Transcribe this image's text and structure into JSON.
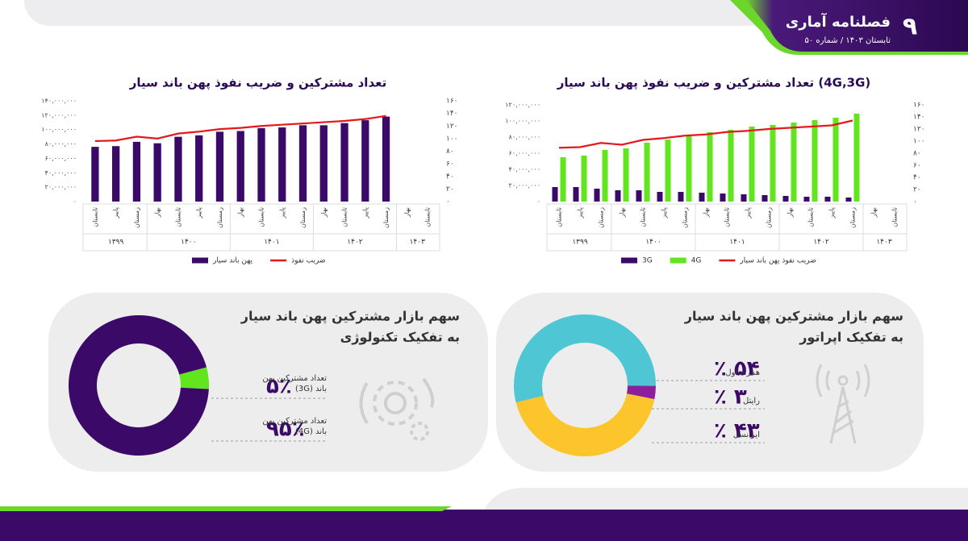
{
  "header": {
    "page": "۹",
    "title": "فصلنامه آماری",
    "subtitle": "تابستان ۱۴۰۳ / شماره ۵۰"
  },
  "chart_data": [
    {
      "type": "bar",
      "title": "تعداد مشترکین و ضریب نفوذ پهن باند سیار (4G,3G)",
      "category_groups": [
        {
          "label": "۱۳۹۹",
          "categories": [
            "تابستان",
            "پاییز",
            "زمستان"
          ]
        },
        {
          "label": "۱۴۰۰",
          "categories": [
            "بهار",
            "تابستان",
            "پاییز",
            "زمستان"
          ]
        },
        {
          "label": "۱۴۰۱",
          "categories": [
            "بهار",
            "تابستان",
            "پاییز",
            "زمستان"
          ]
        },
        {
          "label": "۱۴۰۲",
          "categories": [
            "بهار",
            "تابستان",
            "پاییز",
            "زمستان"
          ]
        },
        {
          "label": "۱۴۰۳",
          "categories": [
            "بهار",
            "تابستان"
          ]
        }
      ],
      "series": [
        {
          "name": "3G",
          "color": "#3b0a68",
          "values": [
            18000000,
            18000000,
            16000000,
            14000000,
            14000000,
            12000000,
            12000000,
            11000000,
            10000000,
            9000000,
            8000000,
            7000000,
            6000000,
            6000000,
            5000000
          ]
        },
        {
          "name": "4G",
          "color": "#62e41e",
          "values": [
            55000000,
            57000000,
            64000000,
            66000000,
            73000000,
            77000000,
            82000000,
            86000000,
            89000000,
            93000000,
            95000000,
            98000000,
            101000000,
            104000000,
            109000000
          ]
        },
        {
          "name": "ضریب نفوذ پهن باند سیار",
          "color": "#e3191e",
          "type": "line",
          "axis": "y2",
          "values": [
            89,
            90,
            97,
            94,
            102,
            105,
            109,
            111,
            115,
            117,
            120,
            122,
            124,
            126,
            134
          ]
        }
      ],
      "ylim": [
        0,
        120000000
      ],
      "yticks": [
        {
          "value": 0,
          "label": "۰"
        },
        {
          "value": 20000000,
          "label": "۲۰,۰۰۰,۰۰۰"
        },
        {
          "value": 40000000,
          "label": "۴۰,۰۰۰,۰۰۰"
        },
        {
          "value": 60000000,
          "label": "۶۰,۰۰۰,۰۰۰"
        },
        {
          "value": 80000000,
          "label": "۸۰,۰۰۰,۰۰۰"
        },
        {
          "value": 100000000,
          "label": "۱۰۰,۰۰۰,۰۰۰"
        },
        {
          "value": 120000000,
          "label": "۱۲۰,۰۰۰,۰۰۰"
        }
      ],
      "y2lim": [
        0,
        160
      ],
      "y2ticks": [
        {
          "value": 0,
          "label": "۰"
        },
        {
          "value": 20,
          "label": "۲۰"
        },
        {
          "value": 40,
          "label": "۴۰"
        },
        {
          "value": 60,
          "label": "۶۰"
        },
        {
          "value": 80,
          "label": "۸۰"
        },
        {
          "value": 100,
          "label": "۱۰۰"
        },
        {
          "value": 120,
          "label": "۱۲۰"
        },
        {
          "value": 140,
          "label": "۱۴۰"
        },
        {
          "value": 160,
          "label": "۱۶۰"
        }
      ],
      "grid": false
    },
    {
      "type": "bar",
      "title": "تعداد مشترکین و ضریب نفوذ پهن باند سیار",
      "category_groups": [
        {
          "label": "۱۳۹۹",
          "categories": [
            "تابستان",
            "پاییز",
            "زمستان"
          ]
        },
        {
          "label": "۱۴۰۰",
          "categories": [
            "بهار",
            "تابستان",
            "پاییز",
            "زمستان"
          ]
        },
        {
          "label": "۱۴۰۱",
          "categories": [
            "بهار",
            "تابستان",
            "پاییز",
            "زمستان"
          ]
        },
        {
          "label": "۱۴۰۲",
          "categories": [
            "بهار",
            "تابستان",
            "پاییز",
            "زمستان"
          ]
        },
        {
          "label": "۱۴۰۳",
          "categories": [
            "بهار",
            "تابستان"
          ]
        }
      ],
      "series": [
        {
          "name": "پهن باند سیار",
          "color": "#3b0a68",
          "values": [
            76000000,
            77000000,
            83000000,
            81000000,
            90000000,
            92000000,
            97000000,
            98000000,
            102000000,
            103000000,
            106000000,
            106000000,
            109000000,
            113000000,
            118000000
          ]
        },
        {
          "name": "ضریب نفوذ",
          "color": "#e3191e",
          "type": "line",
          "axis": "y2",
          "values": [
            96,
            97,
            103,
            100,
            108,
            111,
            115,
            117,
            120,
            122,
            124,
            126,
            128,
            131,
            136
          ]
        }
      ],
      "ylim": [
        0,
        140000000
      ],
      "yticks": [
        {
          "value": 0,
          "label": "۰"
        },
        {
          "value": 20000000,
          "label": "۲۰,۰۰۰,۰۰۰"
        },
        {
          "value": 40000000,
          "label": "۴۰,۰۰۰,۰۰۰"
        },
        {
          "value": 60000000,
          "label": "۶۰,۰۰۰,۰۰۰"
        },
        {
          "value": 80000000,
          "label": "۸۰,۰۰۰,۰۰۰"
        },
        {
          "value": 100000000,
          "label": "۱۰۰,۰۰۰,۰۰۰"
        },
        {
          "value": 120000000,
          "label": "۱۲۰,۰۰۰,۰۰۰"
        },
        {
          "value": 140000000,
          "label": "۱۴۰,۰۰۰,۰۰۰"
        }
      ],
      "y2lim": [
        0,
        160
      ],
      "y2ticks": [
        {
          "value": 0,
          "label": "۰"
        },
        {
          "value": 20,
          "label": "۲۰"
        },
        {
          "value": 40,
          "label": "۴۰"
        },
        {
          "value": 60,
          "label": "۶۰"
        },
        {
          "value": 80,
          "label": "۸۰"
        },
        {
          "value": 100,
          "label": "۱۰۰"
        },
        {
          "value": 120,
          "label": "۱۲۰"
        },
        {
          "value": 140,
          "label": "۱۴۰"
        },
        {
          "value": 160,
          "label": "۱۶۰"
        }
      ],
      "grid": false
    },
    {
      "type": "donut",
      "title_lines": [
        "سهم بازار مشترکین پهن باند سیار",
        "به تفکیک اپراتور"
      ],
      "categories": [
        "همراه اول",
        "رایتل",
        "ایرانسل"
      ],
      "values": [
        54,
        3,
        43
      ],
      "value_labels": [
        "۵۴ ٪",
        "۳ ٪",
        "۴۳ ٪"
      ],
      "colors": [
        "#4fc6d3",
        "#8b1f9c",
        "#fcc52b"
      ]
    },
    {
      "type": "donut",
      "title_lines": [
        "سهم بازار مشترکین پهن باند سیار",
        "به تفکیک تکنولوژی"
      ],
      "categories": [
        "تعداد مشترکین پهن باند (3G)",
        "تعداد مشترکین پهن باند (4G)"
      ],
      "values": [
        5,
        95
      ],
      "value_labels": [
        "۵٪",
        "۹۵٪"
      ],
      "colors": [
        "#62e41e",
        "#3b0a68"
      ]
    }
  ]
}
